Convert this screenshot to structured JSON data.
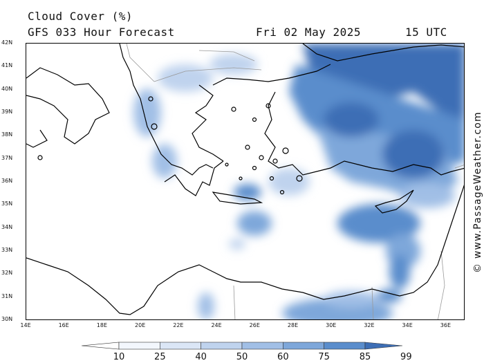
{
  "title": {
    "line1": "Cloud Cover (%)",
    "line2": "GFS 033 Hour Forecast",
    "date": "Fri 02 May 2025",
    "hour": "15 UTC"
  },
  "map": {
    "lat_labels": [
      "42N",
      "41N",
      "40N",
      "39N",
      "38N",
      "37N",
      "36N",
      "35N",
      "34N",
      "33N",
      "32N",
      "31N",
      "30N"
    ],
    "lon_labels": [
      "14E",
      "16E",
      "18E",
      "20E",
      "22E",
      "24E",
      "26E",
      "28E",
      "30E",
      "32E",
      "34E",
      "36E"
    ],
    "extent": {
      "lon_min": 14,
      "lon_max": 37,
      "lat_min": 30,
      "lat_max": 42
    },
    "land_color": "#ffffff",
    "coast_color": "#000000",
    "border_color": "#999999"
  },
  "credit": "© www.PassageWeather.com",
  "legend": {
    "labels": [
      "10",
      "25",
      "40",
      "50",
      "60",
      "75",
      "85",
      "99"
    ],
    "colors": [
      "#ffffff",
      "#f3f7fd",
      "#dbe6f6",
      "#bfd3ee",
      "#a1bfe6",
      "#7ea7da",
      "#5a8dcc",
      "#3d6eb5"
    ]
  }
}
